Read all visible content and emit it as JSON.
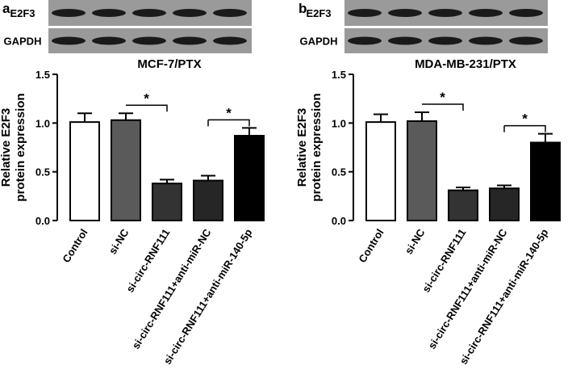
{
  "figure": {
    "panels": [
      {
        "letter": "a",
        "blot_labels": [
          "E2F3",
          "GAPDH"
        ]
      },
      {
        "letter": "b",
        "blot_labels": [
          "E2F3",
          "GAPDH"
        ]
      }
    ]
  },
  "chart_data": [
    {
      "type": "bar",
      "title": "MCF-7/PTX",
      "y_label": [
        "Relative E2F3",
        "protein expression"
      ],
      "categories": [
        "Control",
        "si-NC",
        "si-circ-RNF111",
        "si-circ-RNF111+anti-miR-NC",
        "si-circ-RNF111+anti-miR-140-5p"
      ],
      "series": [
        {
          "values": [
            1.01,
            1.03,
            0.38,
            0.41,
            0.87
          ],
          "errors": [
            0.09,
            0.07,
            0.04,
            0.05,
            0.08
          ],
          "colors": [
            "#ffffff",
            "#5a5a5a",
            "#333333",
            "#262626",
            "#000000"
          ]
        }
      ],
      "ylim": [
        0,
        1.5
      ],
      "yticks": [
        {
          "value": 0,
          "label": "0.0"
        },
        0.5,
        {
          "value": 1,
          "label": "1.0"
        },
        {
          "value": 1.5,
          "label": "1.5"
        }
      ],
      "annotations": [
        "*",
        "*"
      ]
    },
    {
      "type": "bar",
      "title": "MDA-MB-231/PTX",
      "y_label": [
        "Relative E2F3",
        "protein expression"
      ],
      "categories": [
        "Control",
        "si-NC",
        "si-circ-RNF111",
        "si-circ-RNF111+anti-miR-NC",
        "si-circ-RNF111+anti-miR-140-5p"
      ],
      "series": [
        {
          "values": [
            1.01,
            1.02,
            0.31,
            0.33,
            0.8
          ],
          "errors": [
            0.08,
            0.09,
            0.03,
            0.03,
            0.09
          ],
          "colors": [
            "#ffffff",
            "#5a5a5a",
            "#333333",
            "#262626",
            "#000000"
          ]
        }
      ],
      "ylim": [
        0,
        1.5
      ],
      "yticks": [
        {
          "value": 0,
          "label": "0.0"
        },
        0.5,
        {
          "value": 1,
          "label": "1.0"
        },
        {
          "value": 1.5,
          "label": "1.5"
        }
      ],
      "annotations": [
        "*",
        "*"
      ]
    }
  ]
}
